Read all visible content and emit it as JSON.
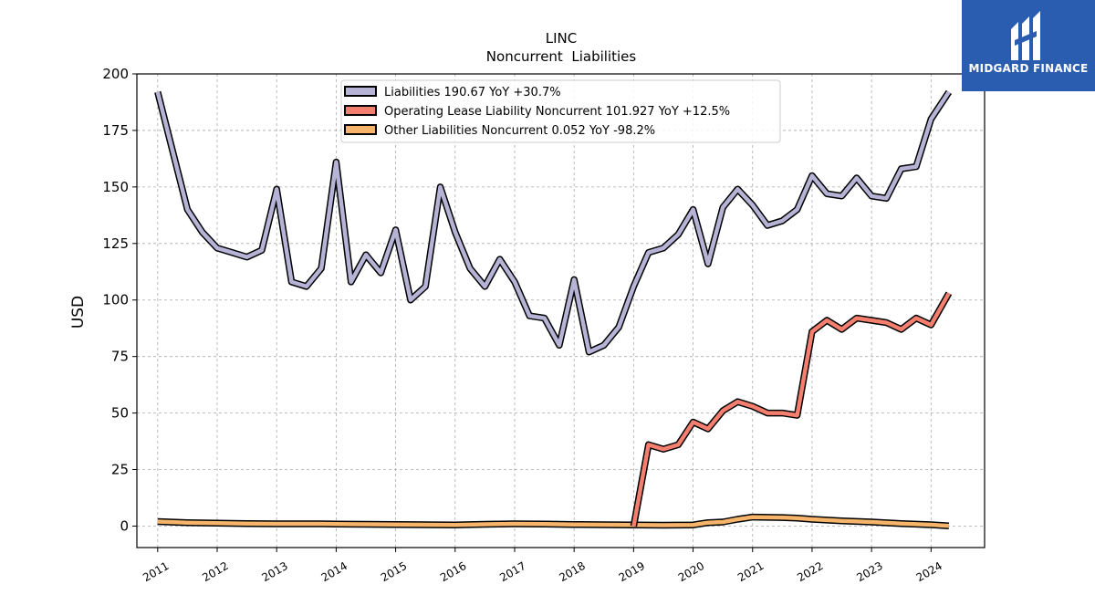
{
  "brand": {
    "name": "MIDGARD FINANCE",
    "bg_color": "#2a5db0"
  },
  "chart_data": {
    "type": "line",
    "title": "LINC",
    "subtitle": "Noncurrent  Liabilities",
    "ylabel": "USD",
    "xlabel": "",
    "ylim": [
      -9.5,
      200
    ],
    "xlim": [
      2010.65,
      2024.9
    ],
    "y_ticks": [
      0,
      25,
      50,
      75,
      100,
      125,
      150,
      175,
      200
    ],
    "x_ticks": [
      2011,
      2012,
      2013,
      2014,
      2015,
      2016,
      2017,
      2018,
      2019,
      2020,
      2021,
      2022,
      2023,
      2024
    ],
    "grid": true,
    "legend_position": "top-center",
    "series": [
      {
        "name": "Liabilities  190.67 YoY +30.7%",
        "color": "#b6b3d6",
        "x": [
          2011.0,
          2011.25,
          2011.5,
          2011.75,
          2012.0,
          2012.25,
          2012.5,
          2012.75,
          2013.0,
          2013.25,
          2013.5,
          2013.75,
          2014.0,
          2014.25,
          2014.5,
          2014.75,
          2015.0,
          2015.25,
          2015.5,
          2015.75,
          2016.0,
          2016.25,
          2016.5,
          2016.75,
          2017.0,
          2017.25,
          2017.5,
          2017.75,
          2018.0,
          2018.25,
          2018.5,
          2018.75,
          2019.0,
          2019.25,
          2019.5,
          2019.75,
          2020.0,
          2020.25,
          2020.5,
          2020.75,
          2021.0,
          2021.25,
          2021.5,
          2021.75,
          2022.0,
          2022.25,
          2022.5,
          2022.75,
          2023.0,
          2023.25,
          2023.5,
          2023.75,
          2024.0,
          2024.3
        ],
        "values": [
          192,
          166,
          140,
          130,
          123,
          121,
          119,
          122,
          149,
          108,
          106,
          114,
          161,
          108,
          120,
          112,
          131,
          100,
          106,
          150,
          130,
          114,
          106,
          118,
          108,
          93,
          92,
          80,
          109,
          77,
          80,
          88,
          106,
          121,
          123,
          129,
          140,
          116,
          141,
          149,
          142,
          133,
          135,
          140,
          155,
          147,
          146,
          154,
          146,
          145,
          158,
          159,
          180,
          192
        ]
      },
      {
        "name": "Operating Lease Liability Noncurrent  101.927 YoY +12.5%",
        "color": "#f47f6e",
        "x": [
          2019.0,
          2019.25,
          2019.5,
          2019.75,
          2020.0,
          2020.25,
          2020.5,
          2020.75,
          2021.0,
          2021.25,
          2021.5,
          2021.75,
          2022.0,
          2022.25,
          2022.5,
          2022.75,
          2023.0,
          2023.25,
          2023.5,
          2023.75,
          2024.0,
          2024.3
        ],
        "values": [
          0,
          36,
          34,
          36,
          46,
          43,
          51,
          55,
          53,
          50,
          50,
          49,
          86,
          91,
          87,
          92,
          91,
          90,
          87,
          92,
          89,
          103
        ]
      },
      {
        "name": "Other Liabilities Noncurrent  0.052 YoY -98.2%",
        "color": "#f6b56b",
        "x": [
          2011.0,
          2011.5,
          2012.0,
          2012.5,
          2013.0,
          2013.5,
          2013.75,
          2014.0,
          2014.5,
          2015.0,
          2015.5,
          2016.0,
          2016.5,
          2017.0,
          2017.5,
          2018.0,
          2018.5,
          2019.0,
          2019.5,
          2020.0,
          2020.25,
          2020.5,
          2020.75,
          2021.0,
          2021.5,
          2021.75,
          2022.0,
          2022.5,
          2023.0,
          2023.5,
          2024.0,
          2024.3
        ],
        "values": [
          2,
          1.5,
          1.3,
          1.1,
          1,
          1,
          1,
          0.9,
          0.8,
          0.7,
          0.6,
          0.5,
          0.8,
          1,
          0.9,
          0.7,
          0.6,
          0.5,
          0.4,
          0.5,
          1.5,
          1.8,
          3,
          4,
          3.8,
          3.5,
          3,
          2.3,
          1.8,
          1.1,
          0.6,
          0.1
        ]
      }
    ]
  }
}
